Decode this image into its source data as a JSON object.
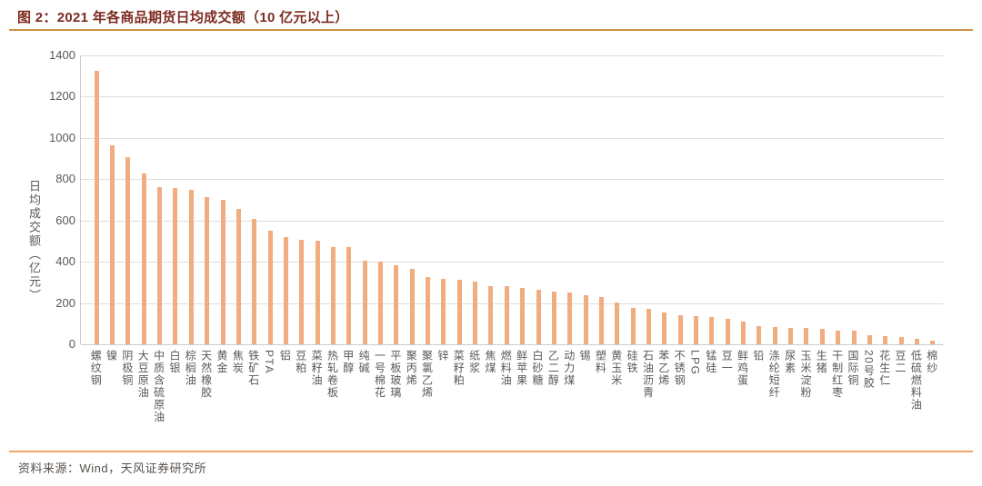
{
  "header": {
    "title": "图 2：2021 年各商品期货日均成交额（10 亿元以上）"
  },
  "footer": {
    "source": "资料来源：Wind，天风证券研究所"
  },
  "colors": {
    "bar": "#f1ac80",
    "title": "#7c2a1f",
    "title_rule": "#ce9445",
    "footer_rule": "#eca66b",
    "axis_text": "#595959",
    "gridline": "#dedede"
  },
  "chart_data": {
    "type": "bar",
    "title": "图 2：2021 年各商品期货日均成交额（10 亿元以上）",
    "xlabel": "",
    "ylabel": "日均成交额（亿元）",
    "ylim": [
      0,
      1400
    ],
    "ytick_step": 200,
    "yticks": [
      0,
      200,
      400,
      600,
      800,
      1000,
      1200,
      1400
    ],
    "grid": true,
    "legend": false,
    "categories": [
      "螺纹钢",
      "镍",
      "阴极铜",
      "大豆原油",
      "中质含硫原油",
      "白银",
      "棕榈油",
      "天然橡胶",
      "黄金",
      "焦炭",
      "铁矿石",
      "PTA",
      "铝",
      "豆粕",
      "菜籽油",
      "热轧卷板",
      "甲醇",
      "纯碱",
      "一号棉花",
      "平板玻璃",
      "聚丙烯",
      "聚氯乙烯",
      "锌",
      "菜籽粕",
      "纸浆",
      "焦煤",
      "燃料油",
      "鲜苹果",
      "白砂糖",
      "乙二醇",
      "动力煤",
      "锡",
      "塑料",
      "黄玉米",
      "硅铁",
      "石油沥青",
      "苯乙烯",
      "不锈钢",
      "LPG",
      "锰硅",
      "豆一",
      "鲜鸡蛋",
      "铅",
      "涤纶短纤",
      "尿素",
      "玉米淀粉",
      "生猪",
      "干制红枣",
      "国际铜",
      "20号胶",
      "花生仁",
      "豆二",
      "低硫燃料油",
      "棉纱"
    ],
    "values": [
      1325,
      965,
      905,
      828,
      762,
      758,
      750,
      714,
      700,
      658,
      607,
      551,
      520,
      505,
      502,
      473,
      470,
      405,
      401,
      384,
      365,
      325,
      316,
      311,
      305,
      284,
      281,
      273,
      265,
      257,
      252,
      236,
      231,
      202,
      176,
      172,
      155,
      139,
      135,
      131,
      123,
      110,
      87,
      84,
      79,
      78,
      76,
      68,
      64,
      42,
      40,
      36,
      28,
      18
    ]
  }
}
